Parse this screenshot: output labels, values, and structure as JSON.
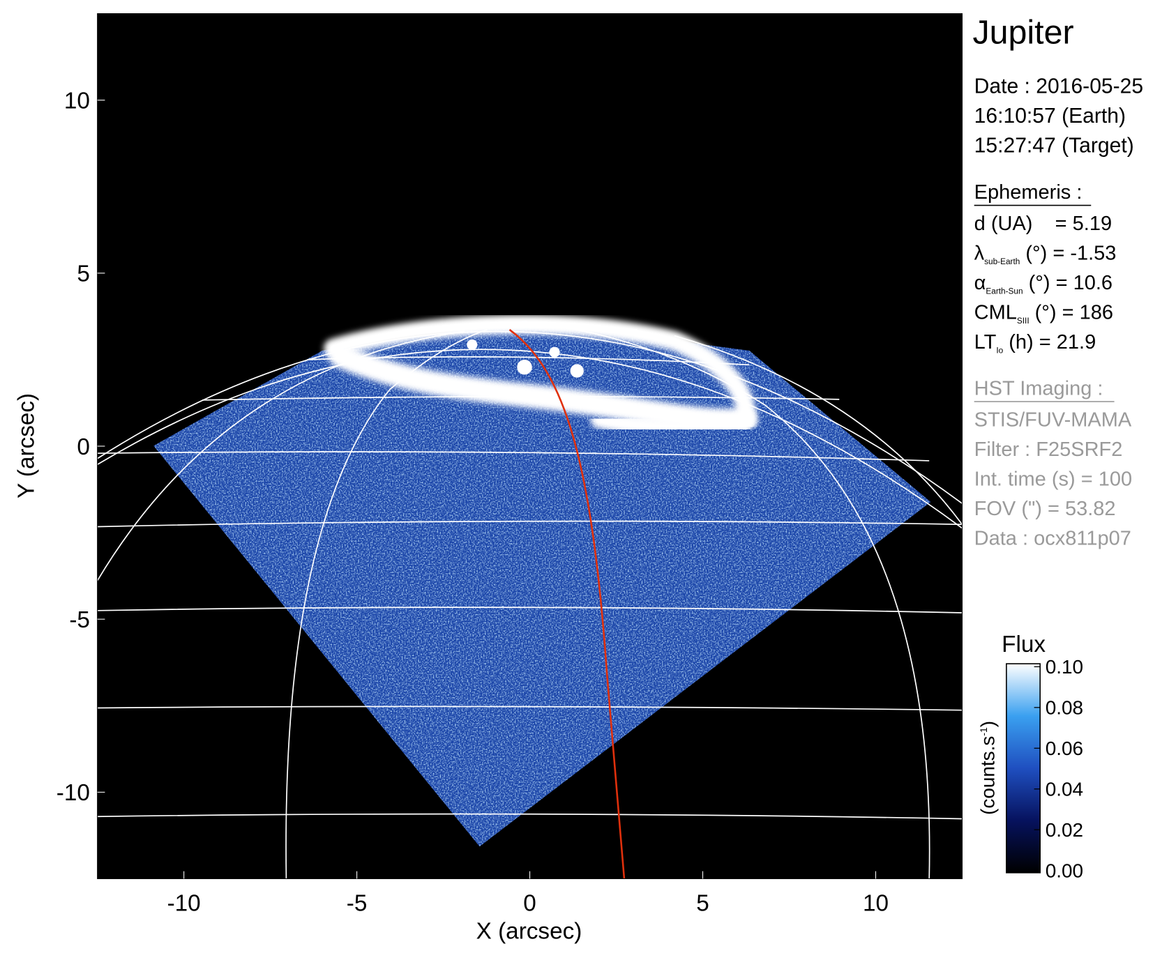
{
  "chart_data": {
    "type": "image",
    "title": "Jupiter",
    "xlabel": "X (arcsec)",
    "ylabel": "Y (arcsec)",
    "xlim": [
      -12.5,
      12.5
    ],
    "ylim": [
      -12.5,
      12.5
    ],
    "xticks": [
      -10,
      -5,
      0,
      5,
      10
    ],
    "yticks": [
      -10,
      -5,
      0,
      5,
      10
    ],
    "info": [
      "Date : 2016-05-25",
      "16:10:57 (Earth)",
      "15:27:47 (Target)"
    ],
    "ephemeris": {
      "heading": "Ephemeris :",
      "lines": [
        {
          "main": "d (UA)    = 5.19"
        },
        {
          "main": "λ",
          "sub": "sub-Earth",
          "rest": " (°) = -1.53"
        },
        {
          "main": "α",
          "sub": "Earth-Sun",
          "rest": " (°) = 10.6"
        },
        {
          "main": "CML",
          "sub": "SIII",
          "rest": " (°) = 186"
        },
        {
          "main": "LT",
          "sub": "Io",
          "rest": " (h) = 21.9"
        }
      ]
    },
    "imaging": {
      "heading": "HST Imaging :",
      "lines": [
        "STIS/FUV-MAMA",
        "Filter : F25SRF2",
        "Int. time (s) = 100",
        "FOV (\") = 53.82",
        "Data : ocx811p07"
      ]
    },
    "colorbar": {
      "title": "Flux",
      "unit": {
        "main": "(counts.s",
        "sup": "-1",
        "end": ")"
      },
      "lim": [
        0,
        0.1
      ],
      "ticks": [
        {
          "value": 0.1,
          "label": "0.10"
        },
        0.08,
        0.06,
        0.04,
        0.02,
        {
          "value": 0,
          "label": "0.00"
        }
      ]
    }
  }
}
